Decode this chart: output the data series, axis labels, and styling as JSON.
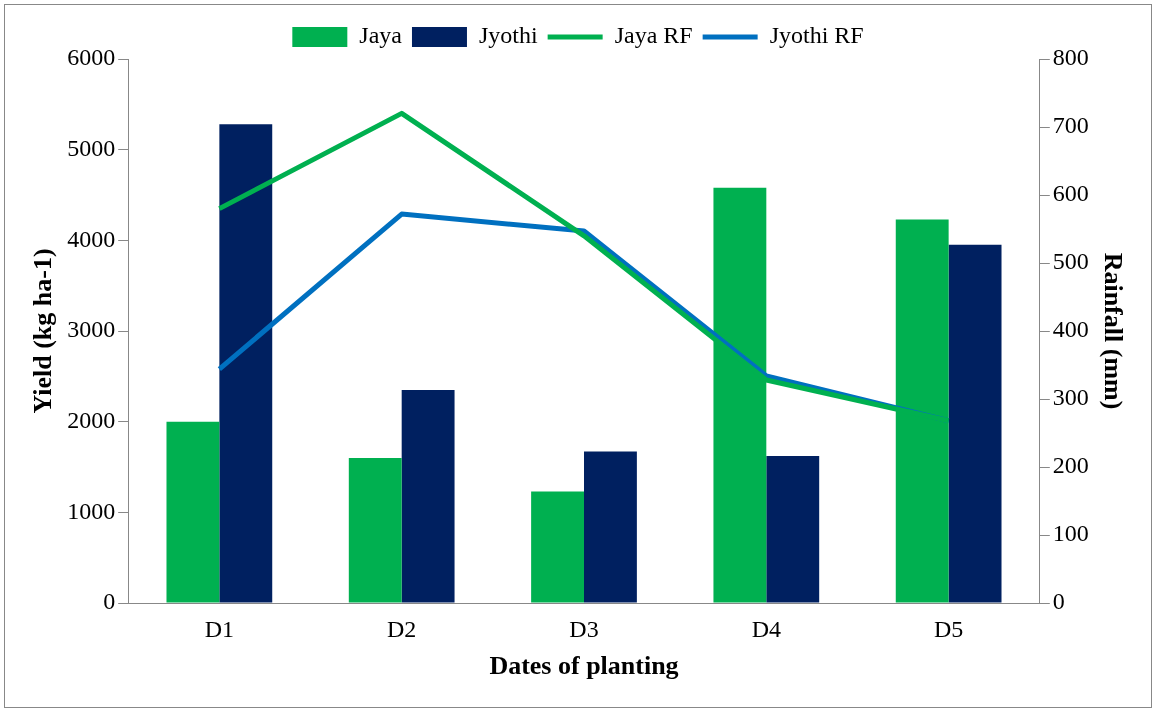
{
  "chart_data": {
    "type": "bar",
    "xlabel": "Dates of planting",
    "ylabel": "Yield (kg ha-1)",
    "y2label": "Rainfall (mm)",
    "categories": [
      "D1",
      "D2",
      "D3",
      "D4",
      "D5"
    ],
    "series": [
      {
        "name": "Jaya",
        "color": "#00b050",
        "values": [
          2000,
          1600,
          1230,
          4580,
          4230
        ]
      },
      {
        "name": "Jyothi",
        "color": "#002060",
        "values": [
          5280,
          2350,
          1670,
          1620,
          3950
        ]
      },
      {
        "name": "Jaya RF",
        "type": "line",
        "axis": "y2",
        "color": "#00b050",
        "values": [
          580,
          720,
          540,
          328,
          268
        ]
      },
      {
        "name": "Jyothi RF",
        "type": "line",
        "axis": "y2",
        "color": "#0070c0",
        "values": [
          344,
          572,
          547,
          334,
          268
        ]
      }
    ],
    "ylim": [
      0,
      6000
    ],
    "yticks": [
      0,
      1000,
      2000,
      3000,
      4000,
      5000,
      6000
    ],
    "y2lim": [
      0,
      800
    ],
    "y2ticks": [
      0,
      100,
      200,
      300,
      400,
      500,
      600,
      700,
      800
    ],
    "legend": "top",
    "marker": "none",
    "grid": false
  }
}
